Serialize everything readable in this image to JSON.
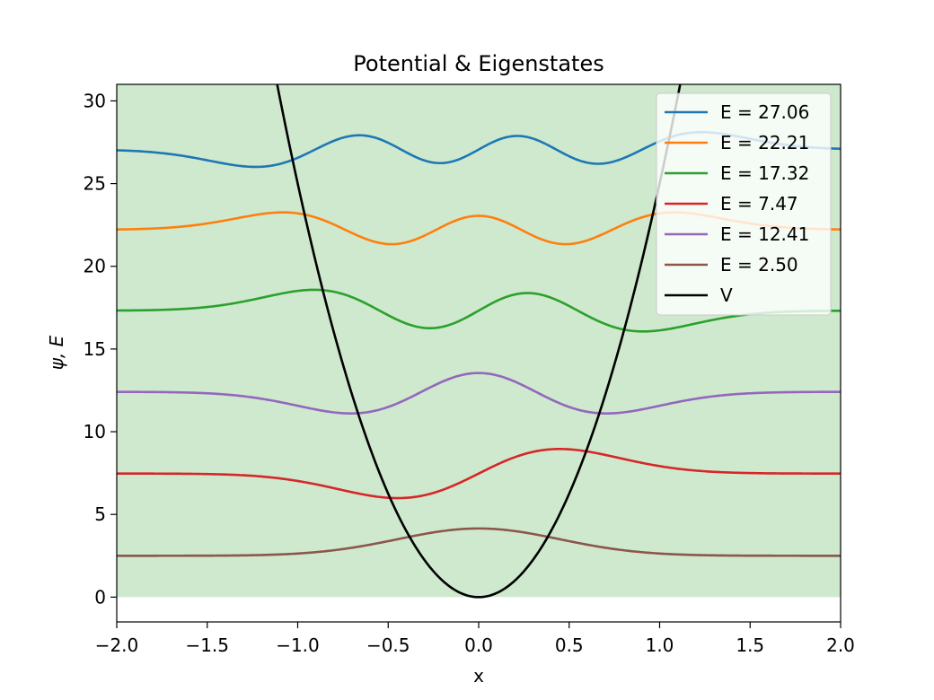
{
  "chart_data": {
    "type": "line",
    "title": "Potential & Eigenstates",
    "xlabel": "x",
    "ylabel": "ψ, E",
    "xlim": [
      -2.0,
      2.0
    ],
    "ylim": [
      -1.5,
      31.0
    ],
    "x_ticks": [
      -2.0,
      -1.5,
      -1.0,
      -0.5,
      0.0,
      0.5,
      1.0,
      1.5,
      2.0
    ],
    "x_tick_labels": [
      "−2.0",
      "−1.5",
      "−1.0",
      "−0.5",
      "0.0",
      "0.5",
      "1.0",
      "1.5",
      "2.0"
    ],
    "y_ticks": [
      0,
      5,
      10,
      15,
      20,
      25,
      30
    ],
    "y_tick_labels": [
      "0",
      "5",
      "10",
      "15",
      "20",
      "25",
      "30"
    ],
    "grid": false,
    "legend_position": "top-right",
    "shaded_region": {
      "color": "#2ca02c",
      "opacity": 0.23,
      "y_from": 0,
      "description_label": ""
    },
    "potential": {
      "name": "V",
      "color": "#000000",
      "coefficient": 25,
      "formula": "V = 25 x^2"
    },
    "series": [
      {
        "name": "E = 27.06",
        "energy": 27.06,
        "n": 5,
        "amplitude": 0.7,
        "color": "#1f77b4"
      },
      {
        "name": "E = 22.21",
        "energy": 22.21,
        "n": 4,
        "amplitude": 0.7,
        "color": "#ff7f0e"
      },
      {
        "name": "E = 17.32",
        "energy": 17.32,
        "n": 3,
        "amplitude": 0.84,
        "color": "#2ca02c"
      },
      {
        "name": "E = 7.47",
        "energy": 7.47,
        "n": 1,
        "amplitude": 0.99,
        "color": "#d62728"
      },
      {
        "name": "E = 12.41",
        "energy": 12.41,
        "n": 2,
        "amplitude": 0.87,
        "color": "#9467bd"
      },
      {
        "name": "E = 2.50",
        "energy": 2.5,
        "n": 0,
        "amplitude": 1.1,
        "color": "#8c564b"
      }
    ],
    "legend_entries": [
      "E = 27.06",
      "E = 22.21",
      "E = 17.32",
      "E = 7.47",
      "E = 12.41",
      "E = 2.50",
      "V"
    ]
  }
}
